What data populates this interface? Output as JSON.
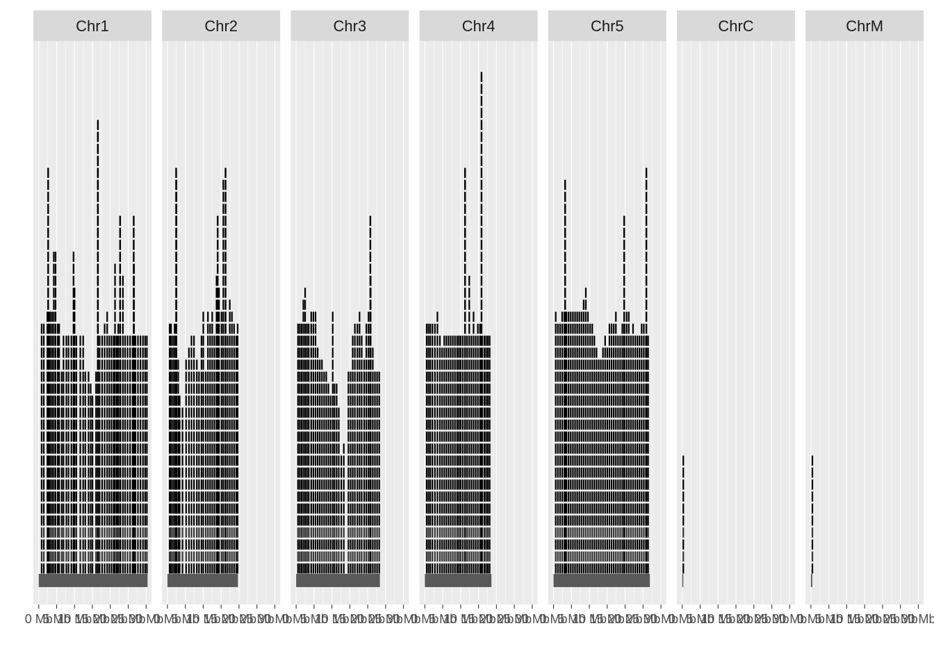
{
  "chart_data": {
    "type": "faceted-track-plot",
    "facets": [
      {
        "name": "Chr1",
        "length_mb": 30.4,
        "stacks": [
          [
            0.6,
            21
          ],
          [
            1.2,
            21
          ],
          [
            2.2,
            22
          ],
          [
            2.6,
            22
          ],
          [
            3.0,
            22
          ],
          [
            3.5,
            22
          ],
          [
            4.0,
            27
          ],
          [
            4.5,
            27
          ],
          [
            5.1,
            21
          ],
          [
            5.5,
            21
          ],
          [
            6.2,
            17
          ],
          [
            6.7,
            20
          ],
          [
            7.5,
            20
          ],
          [
            8.1,
            20
          ],
          [
            8.9,
            20
          ],
          [
            9.8,
            24
          ],
          [
            10.3,
            20
          ],
          [
            11.4,
            20
          ],
          [
            12.2,
            20
          ],
          [
            12.8,
            17
          ],
          [
            13.7,
            17
          ],
          [
            14.3,
            16
          ],
          [
            14.8,
            15
          ],
          [
            15.8,
            17
          ],
          [
            16.3,
            37
          ],
          [
            16.8,
            20
          ],
          [
            17.5,
            20
          ],
          [
            18.2,
            21
          ],
          [
            18.9,
            22
          ],
          [
            19.5,
            20
          ],
          [
            20.1,
            20
          ],
          [
            20.7,
            20
          ],
          [
            21.1,
            26
          ],
          [
            21.6,
            20
          ],
          [
            22.0,
            21
          ],
          [
            22.6,
            20
          ],
          [
            23.3,
            25
          ],
          [
            23.9,
            20
          ],
          [
            24.6,
            20
          ],
          [
            25.3,
            20
          ],
          [
            26.0,
            20
          ],
          [
            26.4,
            26
          ],
          [
            26.8,
            20
          ],
          [
            27.5,
            20
          ],
          [
            28.2,
            20
          ],
          [
            28.9,
            20
          ],
          [
            29.5,
            20
          ],
          [
            30.0,
            20
          ]
        ]
      },
      {
        "name": "Chr2",
        "length_mb": 19.7,
        "stacks": [
          [
            0.4,
            21
          ],
          [
            0.8,
            21
          ],
          [
            1.3,
            20
          ],
          [
            1.8,
            21
          ],
          [
            2.3,
            33
          ],
          [
            2.8,
            18
          ],
          [
            3.2,
            15
          ],
          [
            4.0,
            14
          ],
          [
            5.0,
            18
          ],
          [
            5.8,
            19
          ],
          [
            6.5,
            20
          ],
          [
            7.2,
            20
          ],
          [
            8.0,
            18
          ],
          [
            8.6,
            17
          ],
          [
            9.3,
            20
          ],
          [
            9.8,
            22
          ],
          [
            10.5,
            17
          ],
          [
            11.1,
            22
          ],
          [
            11.7,
            21
          ],
          [
            12.3,
            22
          ],
          [
            12.9,
            20
          ],
          [
            13.5,
            25
          ],
          [
            14.2,
            24
          ],
          [
            14.9,
            22
          ],
          [
            15.4,
            33
          ],
          [
            16.0,
            22
          ],
          [
            16.6,
            20
          ],
          [
            17.2,
            23
          ],
          [
            17.8,
            22
          ],
          [
            18.4,
            21
          ],
          [
            19.0,
            20
          ],
          [
            19.4,
            21
          ]
        ]
      },
      {
        "name": "Chr3",
        "length_mb": 23.4,
        "stacks": [
          [
            0.3,
            21
          ],
          [
            0.8,
            21
          ],
          [
            1.3,
            21
          ],
          [
            1.8,
            23
          ],
          [
            2.3,
            24
          ],
          [
            2.8,
            21
          ],
          [
            3.3,
            21
          ],
          [
            4.0,
            22
          ],
          [
            4.6,
            22
          ],
          [
            5.2,
            22
          ],
          [
            5.8,
            19
          ],
          [
            6.4,
            18
          ],
          [
            7.0,
            18
          ],
          [
            7.6,
            17
          ],
          [
            8.2,
            17
          ],
          [
            8.8,
            16
          ],
          [
            9.4,
            15
          ],
          [
            10.0,
            22
          ],
          [
            10.5,
            16
          ],
          [
            11.1,
            16
          ],
          [
            11.7,
            14
          ],
          [
            12.4,
            10
          ],
          [
            13.1,
            11
          ],
          [
            14.4,
            17
          ],
          [
            15.0,
            17
          ],
          [
            15.6,
            20
          ],
          [
            16.2,
            21
          ],
          [
            16.9,
            21
          ],
          [
            17.5,
            22
          ],
          [
            18.1,
            20
          ],
          [
            18.8,
            18
          ],
          [
            19.4,
            21
          ],
          [
            20.0,
            22
          ],
          [
            20.6,
            25
          ],
          [
            21.2,
            19
          ],
          [
            21.8,
            17
          ],
          [
            22.4,
            17
          ],
          [
            23.0,
            17
          ]
        ]
      },
      {
        "name": "Chr4",
        "length_mb": 18.6,
        "stacks": [
          [
            0.3,
            21
          ],
          [
            0.8,
            21
          ],
          [
            1.3,
            21
          ],
          [
            1.9,
            21
          ],
          [
            2.6,
            21
          ],
          [
            3.3,
            22
          ],
          [
            4.0,
            20
          ],
          [
            4.6,
            19
          ],
          [
            5.2,
            20
          ],
          [
            5.8,
            20
          ],
          [
            6.4,
            20
          ],
          [
            7.0,
            20
          ],
          [
            7.6,
            20
          ],
          [
            8.2,
            20
          ],
          [
            8.8,
            20
          ],
          [
            9.3,
            20
          ],
          [
            9.8,
            20
          ],
          [
            10.4,
            20
          ],
          [
            11.0,
            20
          ],
          [
            11.6,
            20
          ],
          [
            12.2,
            25
          ],
          [
            12.8,
            20
          ],
          [
            13.4,
            22
          ],
          [
            14.0,
            20
          ],
          [
            14.6,
            21
          ],
          [
            15.2,
            21
          ],
          [
            15.8,
            20
          ],
          [
            16.4,
            20
          ],
          [
            16.9,
            20
          ],
          [
            17.4,
            20
          ],
          [
            17.9,
            20
          ]
        ]
      },
      {
        "name": "Chr5",
        "length_mb": 26.9,
        "stacks": [
          [
            0.4,
            22
          ],
          [
            1.0,
            21
          ],
          [
            1.6,
            21
          ],
          [
            2.2,
            22
          ],
          [
            2.8,
            22
          ],
          [
            3.4,
            22
          ],
          [
            4.0,
            22
          ],
          [
            4.6,
            22
          ],
          [
            5.2,
            22
          ],
          [
            5.8,
            22
          ],
          [
            6.4,
            22
          ],
          [
            7.0,
            22
          ],
          [
            7.6,
            22
          ],
          [
            8.2,
            23
          ],
          [
            8.8,
            24
          ],
          [
            9.4,
            22
          ],
          [
            10.0,
            21
          ],
          [
            10.6,
            21
          ],
          [
            11.2,
            20
          ],
          [
            11.8,
            19
          ],
          [
            12.4,
            18
          ],
          [
            13.0,
            18
          ],
          [
            13.6,
            19
          ],
          [
            14.2,
            20
          ],
          [
            14.8,
            19
          ],
          [
            15.4,
            21
          ],
          [
            16.0,
            21
          ],
          [
            16.6,
            21
          ],
          [
            17.2,
            22
          ],
          [
            17.8,
            20
          ],
          [
            18.4,
            20
          ],
          [
            19.0,
            21
          ],
          [
            19.6,
            21
          ],
          [
            20.2,
            22
          ],
          [
            20.8,
            22
          ],
          [
            21.4,
            20
          ],
          [
            22.0,
            21
          ],
          [
            22.6,
            20
          ],
          [
            23.2,
            20
          ],
          [
            23.8,
            20
          ],
          [
            24.4,
            21
          ],
          [
            25.0,
            21
          ],
          [
            25.6,
            20
          ],
          [
            26.2,
            20
          ]
        ]
      },
      {
        "name": "ChrC",
        "length_mb": 0.15,
        "stacks": [
          [
            0.08,
            10
          ]
        ]
      },
      {
        "name": "ChrM",
        "length_mb": 0.37,
        "stacks": [
          [
            0.19,
            10
          ]
        ]
      }
    ],
    "spikes": [
      {
        "facet": "Chr1",
        "x": 2.4,
        "height": 34
      },
      {
        "facet": "Chr1",
        "x": 9.5,
        "height": 27
      },
      {
        "facet": "Chr1",
        "x": 16.3,
        "height": 38
      },
      {
        "facet": "Chr1",
        "x": 22.5,
        "height": 30
      },
      {
        "facet": "Chr1",
        "x": 26.3,
        "height": 30
      },
      {
        "facet": "Chr2",
        "x": 2.2,
        "height": 34
      },
      {
        "facet": "Chr2",
        "x": 13.8,
        "height": 30
      },
      {
        "facet": "Chr2",
        "x": 16.0,
        "height": 34
      },
      {
        "facet": "Chr3",
        "x": 20.5,
        "height": 30
      },
      {
        "facet": "Chr4",
        "x": 11.0,
        "height": 34
      },
      {
        "facet": "Chr4",
        "x": 15.6,
        "height": 42
      },
      {
        "facet": "Chr5",
        "x": 3.0,
        "height": 33
      },
      {
        "facet": "Chr5",
        "x": 19.5,
        "height": 30
      },
      {
        "facet": "Chr5",
        "x": 25.7,
        "height": 34
      }
    ],
    "x_breaks": [
      0,
      5,
      10,
      15,
      20,
      25,
      30
    ],
    "x_labels": [
      "0 Mb",
      "5 Mb",
      "10 Mb",
      "15 Mb",
      "20 Mb",
      "25 Mb",
      "30 Mb"
    ],
    "xlim": [
      -1.5,
      31.5
    ],
    "ylim": [
      -2,
      45
    ],
    "grid": true,
    "colors": {
      "panel_background": "#ebebeb",
      "strip_background": "#d9d9d9",
      "grid_lines": "#ffffff",
      "segments": "#000000",
      "base_track": "#595959",
      "axis_text": "#4d4d4d"
    }
  }
}
